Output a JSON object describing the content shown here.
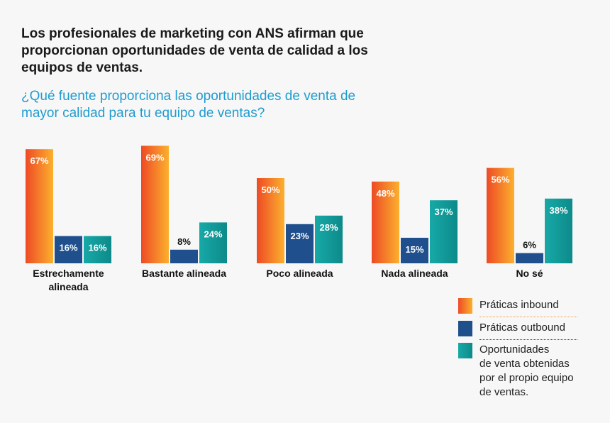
{
  "header": {
    "title": "Los profesionales de marketing con ANS afirman que\nproporcionan oportunidades de venta de calidad a los\nequipos de ventas.",
    "subtitle": "¿Qué fuente proporciona las oportunidades de venta de\nmayor calidad para tu equipo de ventas?"
  },
  "colors": {
    "inbound_start": "#ee4a25",
    "inbound_end": "#fbb02e",
    "outbound": "#1f4f8c",
    "own_start": "#17a9a7",
    "own_end": "#0d8a8a",
    "sep_inbound": "#f59a3a",
    "sep_outbound": "#1f4f8c"
  },
  "chart_data": {
    "type": "bar",
    "categories": [
      "Estrechamente\nalineada",
      "Bastante alineada",
      "Poco alineada",
      "Nada alineada",
      "No sé"
    ],
    "series": [
      {
        "name": "Práticas inbound",
        "values": [
          67,
          69,
          50,
          48,
          56
        ],
        "labels": [
          "67%",
          "69%",
          "50%",
          "48%",
          "56%"
        ]
      },
      {
        "name": "Práticas outbound",
        "values": [
          16,
          8,
          23,
          15,
          6
        ],
        "labels": [
          "16%",
          "8%",
          "23%",
          "15%",
          "6%"
        ]
      },
      {
        "name": "Oportunidades\nde venta obtenidas\npor el propio equipo\nde ventas.",
        "values": [
          16,
          24,
          28,
          37,
          38
        ],
        "labels": [
          "16%",
          "24%",
          "28%",
          "37%",
          "38%"
        ]
      }
    ],
    "ylim": [
      0,
      100
    ],
    "grid": false,
    "legend_position": "bottom-right"
  }
}
